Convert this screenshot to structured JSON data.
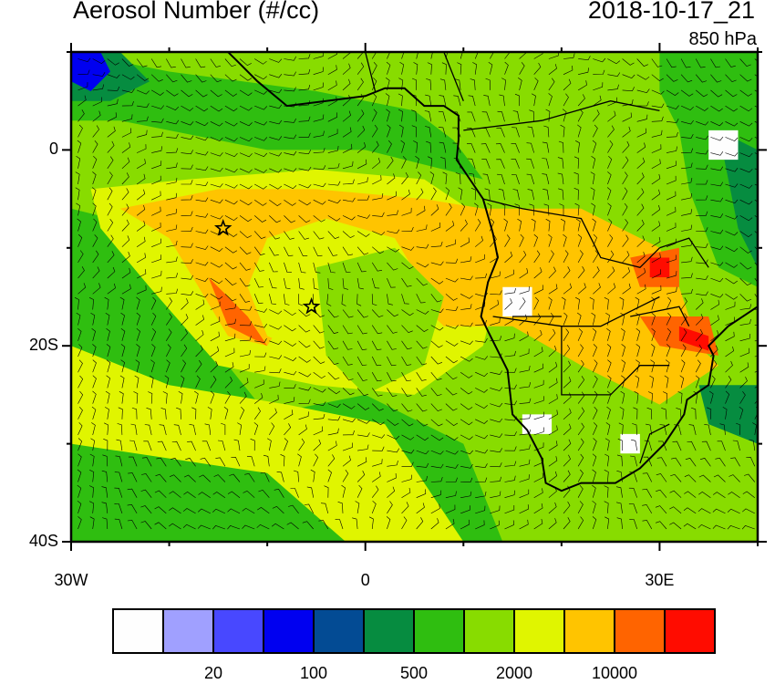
{
  "title_left": "Aerosol Number (#/cc)",
  "title_right": "2018-10-17_21",
  "level": "850 hPa",
  "map": {
    "lon_range": [
      -30,
      40
    ],
    "lat_range": [
      -40,
      10
    ],
    "x_tick_labels": [
      {
        "lon": -30,
        "label": "30W"
      },
      {
        "lon": 0,
        "label": "0"
      },
      {
        "lon": 30,
        "label": "30E"
      }
    ],
    "y_tick_labels": [
      {
        "lat": 0,
        "label": "0"
      },
      {
        "lat": -20,
        "label": "20S"
      },
      {
        "lat": -40,
        "label": "40S"
      }
    ],
    "markers": [
      {
        "lon": -14.5,
        "lat": -8,
        "symbol": "star"
      },
      {
        "lon": -5.5,
        "lat": -16,
        "symbol": "star"
      }
    ],
    "overlay": "wind barbs"
  },
  "colorbar": {
    "colors": [
      "#fefefe",
      "#a0a0ff",
      "#4848ff",
      "#0000f0",
      "#034b94",
      "#068c40",
      "#2fbe10",
      "#88dc00",
      "#e0f500",
      "#ffc400",
      "#ff6400",
      "#ff0c00"
    ],
    "labels": [
      {
        "after_box": 2,
        "text": "20"
      },
      {
        "after_box": 4,
        "text": "100"
      },
      {
        "after_box": 6,
        "text": "500"
      },
      {
        "after_box": 8,
        "text": "2000"
      },
      {
        "after_box": 10,
        "text": "10000"
      }
    ]
  }
}
